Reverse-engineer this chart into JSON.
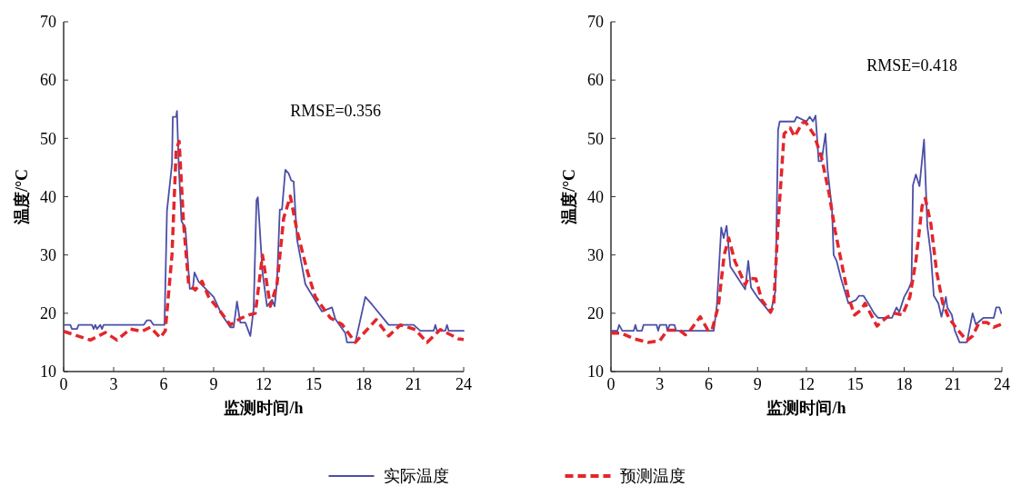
{
  "chart_data": [
    {
      "type": "line",
      "xlabel": "监测时间/h",
      "ylabel": "温度/°C",
      "xlim": [
        0,
        24
      ],
      "xticks": [
        0,
        3,
        6,
        9,
        12,
        15,
        18,
        21,
        24
      ],
      "ylim": [
        10,
        70
      ],
      "yticks": [
        10,
        20,
        30,
        40,
        50,
        60,
        70
      ],
      "grid": false,
      "legend": "bottom",
      "annotations": [
        "RMSE=0.356"
      ],
      "series": [
        {
          "name": "实际温度",
          "color": "#4b4fa6",
          "line_style": "solid",
          "x": [
            0,
            0.4,
            0.5,
            0.8,
            0.9,
            1.7,
            1.8,
            1.9,
            2.0,
            2.2,
            2.3,
            2.4,
            4.8,
            5.0,
            5.2,
            5.4,
            6.05,
            6.2,
            6.5,
            6.55,
            6.75,
            6.8,
            6.9,
            7.07,
            7.3,
            7.57,
            7.75,
            7.85,
            8.1,
            9.0,
            9.5,
            10.0,
            10.2,
            10.4,
            10.6,
            10.9,
            11.2,
            11.4,
            11.57,
            11.65,
            11.93,
            12.2,
            12.5,
            12.66,
            12.8,
            12.97,
            13.1,
            13.3,
            13.5,
            13.65,
            13.8,
            14.0,
            14.5,
            15.5,
            16.1,
            16.3,
            16.9,
            17.0,
            17.5,
            18.1,
            18.5,
            19.5,
            21.0,
            21.4,
            22.2,
            22.3,
            22.4,
            22.9,
            23.0,
            23.1,
            23.7,
            24
          ],
          "values": [
            18,
            18,
            17.3,
            17.3,
            18,
            18,
            17.3,
            18,
            17.3,
            18,
            17.3,
            18,
            18,
            18.8,
            18.8,
            18,
            18,
            37.6,
            45.6,
            53.7,
            53.7,
            54.7,
            45.6,
            35.8,
            34.7,
            24.2,
            24.2,
            27,
            25.4,
            22.8,
            19.7,
            17.6,
            17.6,
            22,
            18.4,
            18.4,
            16.1,
            20.8,
            39.4,
            39.9,
            27,
            21.2,
            22.3,
            21.2,
            25.4,
            37.8,
            37.8,
            44.6,
            44,
            42.8,
            42.6,
            32.7,
            25,
            20.3,
            21,
            19,
            16.6,
            15,
            15,
            22.8,
            21.5,
            18,
            18,
            17,
            17,
            18,
            17,
            17,
            18,
            17,
            17,
            17
          ]
        },
        {
          "name": "预测温度",
          "color": "#e3262b",
          "line_style": "dashed",
          "x": [
            0,
            1.6,
            2.5,
            3.2,
            4.0,
            4.7,
            5.2,
            5.8,
            6.1,
            6.5,
            6.75,
            6.93,
            7.2,
            7.5,
            7.9,
            8.3,
            8.7,
            9.4,
            10.0,
            10.6,
            11.1,
            11.5,
            11.93,
            12.4,
            12.8,
            13.2,
            13.6,
            14.0,
            14.6,
            15.1,
            16.0,
            16.7,
            17.5,
            18.75,
            19.5,
            20.2,
            21.1,
            21.8,
            22.6,
            23.7,
            24
          ],
          "values": [
            16.9,
            15.4,
            16.7,
            15.4,
            17.3,
            16.9,
            17.6,
            15.8,
            17,
            30,
            48,
            49.5,
            35.2,
            25,
            24,
            25.5,
            22.8,
            20.3,
            18,
            19.1,
            19.7,
            20,
            30,
            21.2,
            25,
            36.3,
            40.1,
            34.2,
            27.4,
            22.8,
            19.2,
            18.1,
            15,
            18.9,
            16.1,
            18,
            17.2,
            15,
            17.2,
            15.6,
            15.5
          ]
        }
      ]
    },
    {
      "type": "line",
      "xlabel": "监测时间/h",
      "ylabel": "温度/°C",
      "xlim": [
        0,
        24
      ],
      "xticks": [
        0,
        3,
        6,
        9,
        12,
        15,
        18,
        21,
        24
      ],
      "ylim": [
        10,
        70
      ],
      "yticks": [
        10,
        20,
        30,
        40,
        50,
        60,
        70
      ],
      "grid": false,
      "legend": "bottom",
      "annotations": [
        "RMSE=0.418"
      ],
      "series": [
        {
          "name": "实际温度",
          "color": "#4b4fa6",
          "line_style": "solid",
          "x": [
            0,
            0.4,
            0.5,
            0.7,
            1.4,
            1.5,
            1.6,
            1.9,
            2.0,
            2.8,
            2.9,
            3.0,
            3.4,
            3.46,
            3.6,
            3.9,
            4.0,
            4.1,
            6.31,
            6.5,
            6.77,
            6.92,
            7.1,
            7.33,
            8.24,
            8.43,
            8.6,
            8.98,
            9.8,
            10.1,
            10.26,
            10.36,
            11.27,
            11.4,
            12.0,
            12.2,
            12.4,
            12.56,
            12.75,
            12.93,
            13.17,
            13.3,
            13.57,
            13.67,
            13.85,
            14.13,
            14.58,
            15.05,
            15.23,
            15.5,
            15.8,
            16.15,
            16.4,
            17.25,
            17.53,
            17.7,
            18.0,
            18.26,
            18.45,
            18.54,
            18.72,
            18.94,
            19.22,
            19.42,
            19.64,
            19.82,
            20.1,
            20.29,
            20.56,
            20.65,
            20.93,
            21.1,
            21.4,
            21.85,
            22.2,
            22.4,
            22.86,
            23.5,
            23.65,
            23.85,
            23.96
          ],
          "values": [
            17,
            17,
            18,
            17,
            17,
            18,
            17,
            17,
            18,
            18,
            17,
            18,
            18,
            17,
            18,
            18,
            17,
            17,
            17,
            21.3,
            34.7,
            32.9,
            35,
            28,
            24.1,
            29,
            24.4,
            22.8,
            20,
            23.9,
            51.5,
            52.9,
            52.9,
            53.7,
            52.9,
            53.7,
            52.9,
            53.9,
            46.1,
            46.1,
            50.8,
            44.6,
            37.8,
            30,
            29,
            25.9,
            21.7,
            22.3,
            23,
            23,
            21.7,
            20,
            19.2,
            19.2,
            21,
            20.2,
            22.8,
            24.1,
            25.4,
            42,
            43.8,
            41.8,
            49.8,
            35,
            30,
            23,
            21.7,
            19.4,
            22.8,
            21,
            19.7,
            17.1,
            15,
            15,
            20,
            18.1,
            19.2,
            19.2,
            21,
            21,
            20
          ]
        },
        {
          "name": "预测温度",
          "color": "#e3262b",
          "line_style": "dashed",
          "x": [
            0,
            0.6,
            1.44,
            2.27,
            3.0,
            3.46,
            4.2,
            4.57,
            4.8,
            5.48,
            5.95,
            6.2,
            6.6,
            6.95,
            7.23,
            7.6,
            8.24,
            8.43,
            8.9,
            9.25,
            9.8,
            9.99,
            10.26,
            10.63,
            11.0,
            11.27,
            11.73,
            11.92,
            12.47,
            12.93,
            13.4,
            13.76,
            14.13,
            14.58,
            14.95,
            15.32,
            15.6,
            16.33,
            16.88,
            17.43,
            17.9,
            18.35,
            18.72,
            19.1,
            19.3,
            19.64,
            20.0,
            20.37,
            20.74,
            21.3,
            21.85,
            22.2,
            22.6,
            23.1,
            23.5,
            23.96
          ],
          "values": [
            16.6,
            16.6,
            15.6,
            15,
            15.3,
            17.1,
            17.1,
            16.3,
            16.8,
            19.4,
            17.1,
            17.1,
            21.3,
            30,
            32.9,
            29,
            24.9,
            26,
            25.9,
            22.3,
            20.2,
            21.3,
            35.3,
            50.8,
            51.8,
            50.3,
            52.6,
            52.9,
            50.6,
            46.7,
            40.4,
            34.2,
            29,
            22.8,
            19.7,
            20.5,
            21.7,
            17.8,
            19.2,
            20,
            19.7,
            22.8,
            29,
            38.4,
            39.7,
            35.3,
            27,
            21.7,
            19.2,
            17.1,
            15.3,
            16.1,
            18.4,
            18.4,
            17.6,
            18.1
          ]
        }
      ]
    }
  ]
}
